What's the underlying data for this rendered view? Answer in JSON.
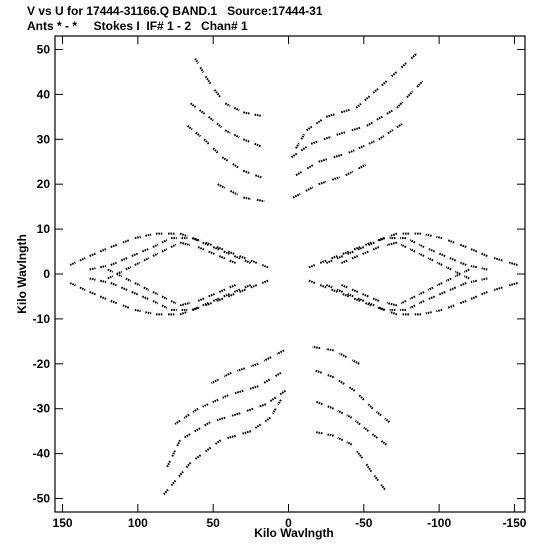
{
  "header": {
    "line1": "V vs U for 17444-31166.Q BAND.1   Source:17444-31",
    "line2": "Ants * - *     Stokes I  IF# 1 - 2   Chan# 1"
  },
  "chart_data": {
    "type": "scatter",
    "xlabel": "Kilo Wavlngth",
    "ylabel": "Kilo Wavlngth",
    "xlim": [
      155,
      -157
    ],
    "ylim": [
      -53,
      53
    ],
    "x_reversed": true,
    "xticks": [
      150,
      100,
      50,
      0,
      -50,
      -100,
      -150
    ],
    "yticks": [
      50,
      40,
      30,
      20,
      10,
      0,
      -10,
      -20,
      -30,
      -40,
      -50
    ],
    "grid": false,
    "marker": "dot",
    "tracks": [
      {
        "points": [
          [
            62,
            48
          ],
          [
            55,
            44
          ],
          [
            49,
            41
          ],
          [
            42,
            38
          ],
          [
            30,
            36
          ],
          [
            15,
            35
          ]
        ]
      },
      {
        "points": [
          [
            65,
            38
          ],
          [
            53,
            35
          ],
          [
            42,
            32
          ],
          [
            30,
            30
          ],
          [
            15,
            28
          ]
        ]
      },
      {
        "points": [
          [
            67,
            33
          ],
          [
            56,
            30
          ],
          [
            44,
            26
          ],
          [
            30,
            23
          ],
          [
            14,
            21
          ]
        ]
      },
      {
        "points": [
          [
            47,
            20
          ],
          [
            30,
            17
          ],
          [
            12,
            16
          ]
        ]
      },
      {
        "points": [
          [
            -5,
            28
          ],
          [
            -12,
            32
          ],
          [
            -25,
            35
          ],
          [
            -45,
            37
          ],
          [
            -62,
            42
          ],
          [
            -88,
            50
          ]
        ]
      },
      {
        "points": [
          [
            -2,
            26
          ],
          [
            -15,
            29
          ],
          [
            -32,
            31
          ],
          [
            -52,
            33
          ],
          [
            -72,
            37
          ],
          [
            -92,
            44
          ]
        ]
      },
      {
        "points": [
          [
            -5,
            22
          ],
          [
            -20,
            25
          ],
          [
            -40,
            27
          ],
          [
            -60,
            30
          ],
          [
            -78,
            34
          ]
        ]
      },
      {
        "points": [
          [
            -3,
            17
          ],
          [
            -20,
            20
          ],
          [
            -38,
            22
          ],
          [
            -55,
            25
          ]
        ]
      },
      {
        "points": [
          [
            -64,
            -48
          ],
          [
            -55,
            -44
          ],
          [
            -49,
            -41
          ],
          [
            -42,
            -38
          ],
          [
            -30,
            -36
          ],
          [
            -15,
            -35
          ]
        ]
      },
      {
        "points": [
          [
            -65,
            -38
          ],
          [
            -53,
            -35
          ],
          [
            -42,
            -32
          ],
          [
            -30,
            -30
          ],
          [
            -15,
            -28
          ]
        ]
      },
      {
        "points": [
          [
            -67,
            -33
          ],
          [
            -56,
            -30
          ],
          [
            -44,
            -26
          ],
          [
            -30,
            -23
          ],
          [
            -14,
            -21
          ]
        ]
      },
      {
        "points": [
          [
            -47,
            -20
          ],
          [
            -30,
            -17
          ],
          [
            -12,
            -16
          ]
        ]
      },
      {
        "points": [
          [
            5,
            -28
          ],
          [
            12,
            -32
          ],
          [
            25,
            -35
          ],
          [
            45,
            -37
          ],
          [
            65,
            -42
          ],
          [
            85,
            -50
          ]
        ]
      },
      {
        "points": [
          [
            2,
            -26
          ],
          [
            15,
            -29
          ],
          [
            32,
            -31
          ],
          [
            52,
            -33
          ],
          [
            72,
            -37
          ],
          [
            82,
            -44
          ]
        ]
      },
      {
        "points": [
          [
            5,
            -22
          ],
          [
            20,
            -25
          ],
          [
            40,
            -27
          ],
          [
            60,
            -30
          ],
          [
            78,
            -34
          ]
        ]
      },
      {
        "points": [
          [
            3,
            -17
          ],
          [
            20,
            -20
          ],
          [
            38,
            -22
          ],
          [
            55,
            -25
          ]
        ]
      },
      {
        "points": [
          [
            145,
            2
          ],
          [
            132,
            4
          ],
          [
            118,
            6
          ],
          [
            102,
            8
          ],
          [
            88,
            9
          ],
          [
            72,
            9
          ],
          [
            55,
            7
          ],
          [
            40,
            5
          ],
          [
            25,
            3
          ],
          [
            10,
            1
          ]
        ]
      },
      {
        "points": [
          [
            132,
            1
          ],
          [
            118,
            2
          ],
          [
            104,
            4
          ],
          [
            90,
            6
          ],
          [
            78,
            8
          ],
          [
            64,
            8
          ],
          [
            50,
            6
          ],
          [
            36,
            4
          ],
          [
            22,
            2
          ]
        ]
      },
      {
        "points": [
          [
            120,
            -1
          ],
          [
            108,
            1
          ],
          [
            96,
            3
          ],
          [
            84,
            5
          ],
          [
            72,
            7
          ],
          [
            60,
            6
          ],
          [
            46,
            4
          ],
          [
            32,
            2
          ]
        ]
      },
      {
        "points": [
          [
            145,
            -2
          ],
          [
            132,
            -4
          ],
          [
            118,
            -6
          ],
          [
            102,
            -8
          ],
          [
            88,
            -9
          ],
          [
            72,
            -9
          ],
          [
            55,
            -7
          ],
          [
            40,
            -5
          ],
          [
            25,
            -3
          ],
          [
            10,
            -1
          ]
        ]
      },
      {
        "points": [
          [
            132,
            -1
          ],
          [
            118,
            -2
          ],
          [
            104,
            -4
          ],
          [
            90,
            -6
          ],
          [
            78,
            -8
          ],
          [
            64,
            -8
          ],
          [
            50,
            -6
          ],
          [
            36,
            -4
          ],
          [
            22,
            -2
          ]
        ]
      },
      {
        "points": [
          [
            120,
            1
          ],
          [
            108,
            -1
          ],
          [
            96,
            -3
          ],
          [
            84,
            -5
          ],
          [
            72,
            -7
          ],
          [
            60,
            -6
          ],
          [
            46,
            -4
          ],
          [
            32,
            -2
          ]
        ]
      },
      {
        "points": [
          [
            -152,
            2
          ],
          [
            -132,
            4
          ],
          [
            -118,
            6
          ],
          [
            -102,
            8
          ],
          [
            -88,
            9
          ],
          [
            -72,
            9
          ],
          [
            -55,
            7
          ],
          [
            -40,
            5
          ],
          [
            -25,
            3
          ],
          [
            -10,
            1
          ]
        ]
      },
      {
        "points": [
          [
            -132,
            1
          ],
          [
            -118,
            2
          ],
          [
            -104,
            4
          ],
          [
            -90,
            6
          ],
          [
            -78,
            8
          ],
          [
            -64,
            8
          ],
          [
            -50,
            6
          ],
          [
            -36,
            4
          ],
          [
            -22,
            2
          ]
        ]
      },
      {
        "points": [
          [
            -120,
            -1
          ],
          [
            -108,
            1
          ],
          [
            -96,
            3
          ],
          [
            -84,
            5
          ],
          [
            -72,
            7
          ],
          [
            -60,
            6
          ],
          [
            -46,
            4
          ],
          [
            -32,
            2
          ]
        ]
      },
      {
        "points": [
          [
            -152,
            -2
          ],
          [
            -132,
            -4
          ],
          [
            -118,
            -6
          ],
          [
            -102,
            -8
          ],
          [
            -88,
            -9
          ],
          [
            -72,
            -9
          ],
          [
            -55,
            -7
          ],
          [
            -40,
            -5
          ],
          [
            -25,
            -3
          ],
          [
            -10,
            -1
          ]
        ]
      },
      {
        "points": [
          [
            -132,
            -1
          ],
          [
            -118,
            -2
          ],
          [
            -104,
            -4
          ],
          [
            -90,
            -6
          ],
          [
            -78,
            -8
          ],
          [
            -64,
            -8
          ],
          [
            -50,
            -6
          ],
          [
            -36,
            -4
          ],
          [
            -22,
            -2
          ]
        ]
      },
      {
        "points": [
          [
            -120,
            1
          ],
          [
            -108,
            -1
          ],
          [
            -96,
            -3
          ],
          [
            -84,
            -5
          ],
          [
            -72,
            -7
          ],
          [
            -60,
            -6
          ],
          [
            -46,
            -4
          ],
          [
            -32,
            -2
          ]
        ]
      }
    ]
  }
}
